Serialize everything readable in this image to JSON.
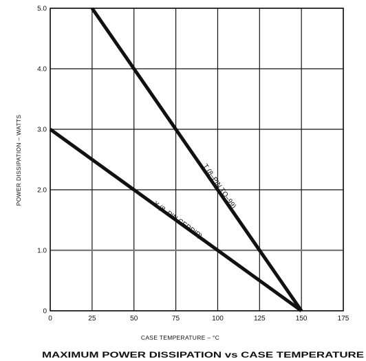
{
  "chart_data": {
    "type": "line",
    "caption": "MAXIMUM POWER DISSIPATION vs CASE TEMPERATURE",
    "xlabel": "CASE TEMPERATURE – °C",
    "ylabel": "POWER DISSIPATION – WATTS",
    "xlim": [
      0,
      175
    ],
    "ylim": [
      0,
      5
    ],
    "grid": true,
    "x_tick_labels": [
      "0",
      "25",
      "50",
      "75",
      "100",
      "125",
      "150",
      "175"
    ],
    "y_tick_labels": [
      "0",
      "1.0",
      "2.0",
      "3.0",
      "4.0",
      "5.0"
    ],
    "series": [
      {
        "name": "T (8–PIN TO–99)",
        "x": [
          25,
          150
        ],
        "y": [
          5.0,
          0.0
        ]
      },
      {
        "name": "Y (8–PIN CERDIP)",
        "x": [
          0,
          150
        ],
        "y": [
          3.0,
          0.0
        ]
      }
    ],
    "line_color": "#111111",
    "grid_color": "#111111",
    "highlight_gridline": {
      "y": 1.0,
      "color": "#777777"
    }
  }
}
